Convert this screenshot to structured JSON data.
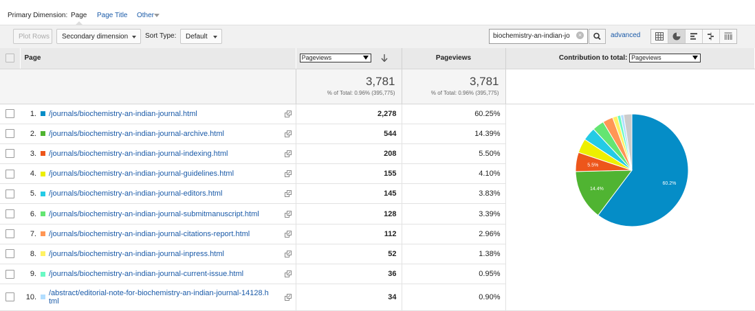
{
  "dimension_bar": {
    "label": "Primary Dimension:",
    "active": "Page",
    "option_page_title": "Page Title",
    "option_other": "Other"
  },
  "toolbar": {
    "plot_rows": "Plot Rows",
    "secondary_dimension": "Secondary dimension",
    "sort_type_label": "Sort Type:",
    "sort_type_value": "Default",
    "search_value": "biochemistry-an-indian-jo",
    "advanced": "advanced"
  },
  "table": {
    "header_page": "Page",
    "metric_select": "Pageviews",
    "header_pageviews": "Pageviews",
    "contribution_label": "Contribution to total:",
    "contribution_select": "Pageviews",
    "totals": {
      "pageviews_1": "3,781",
      "pct_1": "% of Total: 0.96% (395,775)",
      "pageviews_2": "3,781",
      "pct_2": "% of Total: 0.96% (395,775)"
    },
    "rows": [
      {
        "rank": "1.",
        "page": "/journals/biochemistry-an-indian-journal.html",
        "pageviews": "2,278",
        "pct": "60.25%",
        "color": "#058dc7"
      },
      {
        "rank": "2.",
        "page": "/journals/biochemistry-an-indian-journal-archive.html",
        "pageviews": "544",
        "pct": "14.39%",
        "color": "#50b432"
      },
      {
        "rank": "3.",
        "page": "/journals/biochemistry-an-indian-journal-indexing.html",
        "pageviews": "208",
        "pct": "5.50%",
        "color": "#ed561b"
      },
      {
        "rank": "4.",
        "page": "/journals/biochemistry-an-indian-journal-guidelines.html",
        "pageviews": "155",
        "pct": "4.10%",
        "color": "#edef00"
      },
      {
        "rank": "5.",
        "page": "/journals/biochemistry-an-indian-journal-editors.html",
        "pageviews": "145",
        "pct": "3.83%",
        "color": "#24cbe5"
      },
      {
        "rank": "6.",
        "page": "/journals/biochemistry-an-indian-journal-submitmanuscript.html",
        "pageviews": "128",
        "pct": "3.39%",
        "color": "#64e572"
      },
      {
        "rank": "7.",
        "page": "/journals/biochemistry-an-indian-journal-citations-report.html",
        "pageviews": "112",
        "pct": "2.96%",
        "color": "#ff9655"
      },
      {
        "rank": "8.",
        "page": "/journals/biochemistry-an-indian-journal-inpress.html",
        "pageviews": "52",
        "pct": "1.38%",
        "color": "#fff263"
      },
      {
        "rank": "9.",
        "page": "/journals/biochemistry-an-indian-journal-current-issue.html",
        "pageviews": "36",
        "pct": "0.95%",
        "color": "#6af9c4"
      },
      {
        "rank": "10.",
        "page": "/abstract/editorial-note-for-biochemistry-an-indian-journal-14128.html",
        "pageviews": "34",
        "pct": "0.90%",
        "color": "#b2deff"
      }
    ]
  },
  "chart_data": {
    "type": "pie",
    "categories": [
      "1",
      "2",
      "3",
      "4",
      "5",
      "6",
      "7",
      "8",
      "9",
      "10",
      "other"
    ],
    "values": [
      60.25,
      14.39,
      5.5,
      4.1,
      3.83,
      3.39,
      2.96,
      1.38,
      0.95,
      0.9,
      2.35
    ],
    "colors": [
      "#058dc7",
      "#50b432",
      "#ed561b",
      "#edef00",
      "#24cbe5",
      "#64e572",
      "#ff9655",
      "#fff263",
      "#6af9c4",
      "#b2deff",
      "#cccccc"
    ],
    "slice_labels": [
      "60.2%",
      "14.4%",
      "5.5%",
      "",
      "",
      "",
      "",
      "",
      "",
      "",
      ""
    ]
  }
}
